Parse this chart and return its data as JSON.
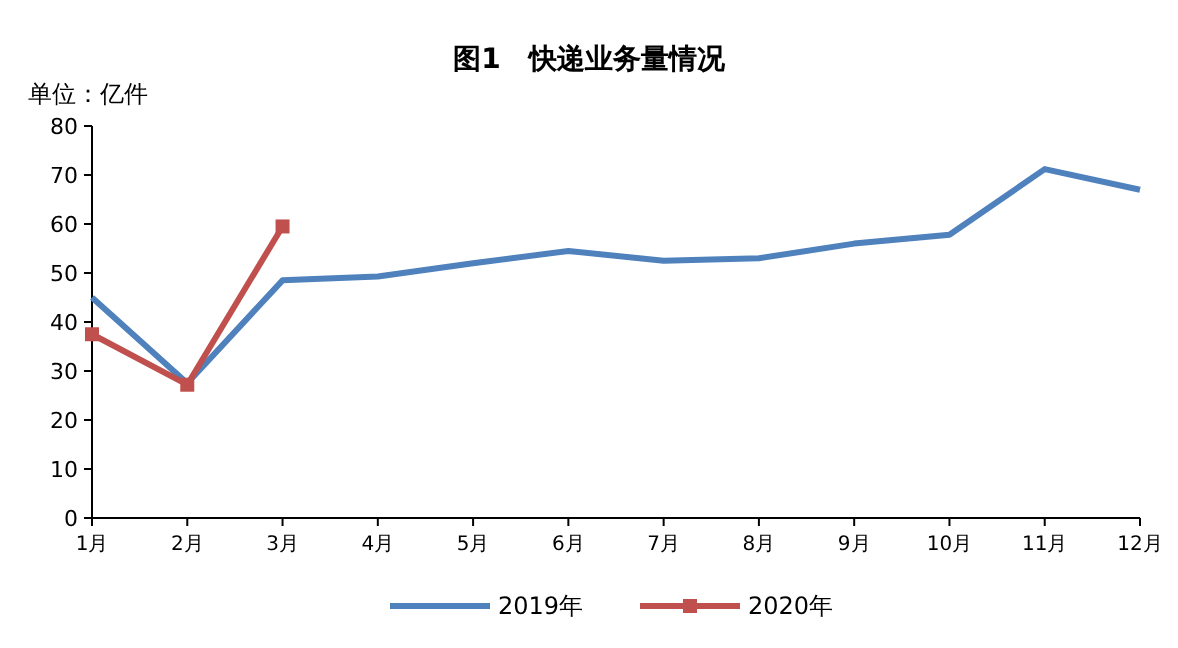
{
  "chart_data": {
    "type": "line",
    "title": "图1　快递业务量情况",
    "ylabel": "单位：亿件",
    "categories": [
      "1月",
      "2月",
      "3月",
      "4月",
      "5月",
      "6月",
      "7月",
      "8月",
      "9月",
      "10月",
      "11月",
      "12月"
    ],
    "ylim": [
      0,
      80
    ],
    "yticks": [
      0,
      10,
      20,
      30,
      40,
      50,
      60,
      70,
      80
    ],
    "legend": "bottom",
    "line_style": "solid",
    "series": [
      {
        "name": "2019年",
        "color": "#4f81bd",
        "marker": "none",
        "values": [
          45,
          27.5,
          48.5,
          49.3,
          52,
          54.5,
          52.5,
          53,
          56,
          57.8,
          71.2,
          67
        ]
      },
      {
        "name": "2020年",
        "color": "#c0504d",
        "marker": "square",
        "values": [
          37.5,
          27.2,
          59.5,
          null,
          null,
          null,
          null,
          null,
          null,
          null,
          null,
          null
        ]
      }
    ]
  }
}
